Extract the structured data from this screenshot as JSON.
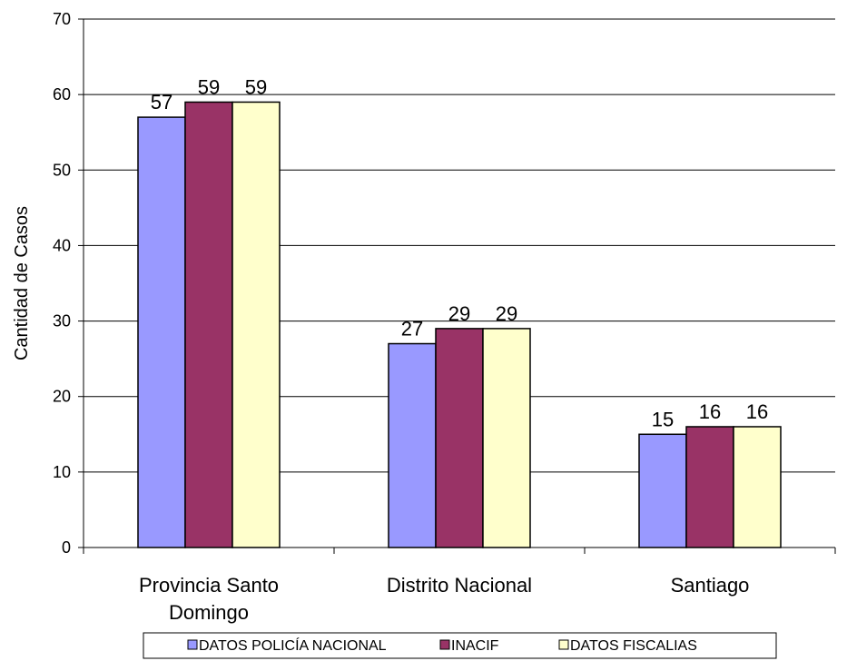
{
  "chart_data": {
    "type": "bar",
    "ylabel": "Cantidad de Casos",
    "xlabel": "",
    "ylim": [
      0,
      70
    ],
    "yticks": [
      0,
      10,
      20,
      30,
      40,
      50,
      60,
      70
    ],
    "grid": true,
    "legend_position": "bottom",
    "categories": [
      [
        "Provincia Santo",
        "Domingo"
      ],
      [
        "Distrito Nacional"
      ],
      [
        "Santiago"
      ]
    ],
    "series": [
      {
        "name": "DATOS POLICÍA NACIONAL",
        "color": "#9999FF",
        "values": [
          57,
          27,
          15
        ]
      },
      {
        "name": "INACIF",
        "color": "#993366",
        "values": [
          59,
          29,
          16
        ]
      },
      {
        "name": "DATOS FISCALIAS",
        "color": "#FFFFCC",
        "values": [
          59,
          29,
          16
        ]
      }
    ]
  }
}
